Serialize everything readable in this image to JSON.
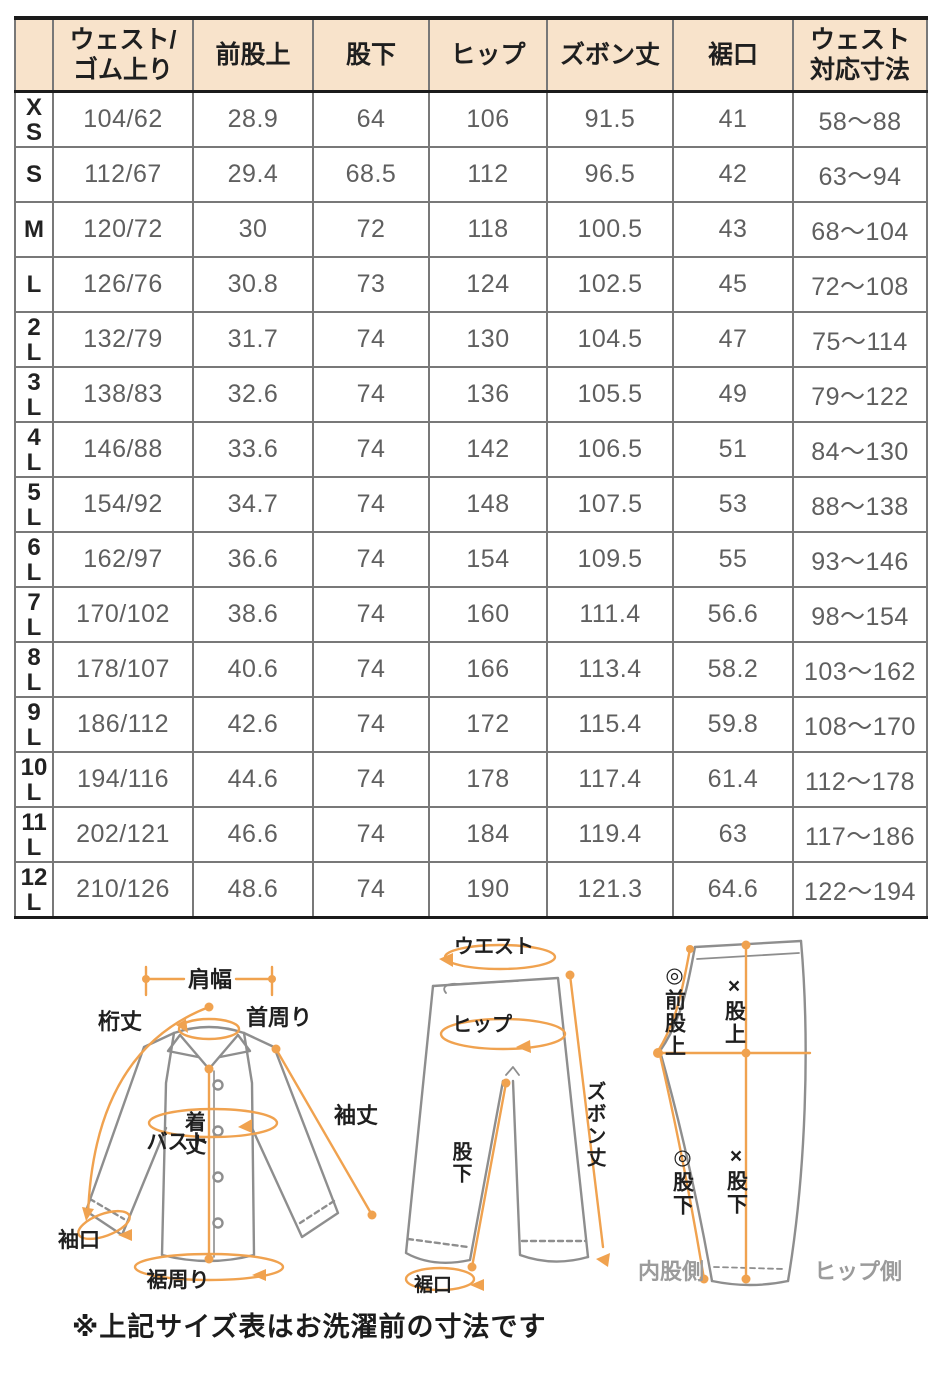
{
  "table": {
    "columns": [
      {
        "lines": []
      },
      {
        "lines": [
          "ウェスト/",
          "ゴム上り"
        ]
      },
      {
        "lines": [
          "前股上"
        ]
      },
      {
        "lines": [
          "股下"
        ]
      },
      {
        "lines": [
          "ヒップ"
        ]
      },
      {
        "lines": [
          "ズボン丈"
        ]
      },
      {
        "lines": [
          "裾口"
        ]
      },
      {
        "lines": [
          "ウェスト",
          "対応寸法"
        ]
      }
    ],
    "rows": [
      {
        "size_lines": [
          "X",
          "S"
        ],
        "cells": [
          "104/62",
          "28.9",
          "64",
          "106",
          "91.5",
          "41",
          "58〜88"
        ]
      },
      {
        "size_lines": [
          "S"
        ],
        "cells": [
          "112/67",
          "29.4",
          "68.5",
          "112",
          "96.5",
          "42",
          "63〜94"
        ]
      },
      {
        "size_lines": [
          "M"
        ],
        "cells": [
          "120/72",
          "30",
          "72",
          "118",
          "100.5",
          "43",
          "68〜104"
        ]
      },
      {
        "size_lines": [
          "L"
        ],
        "cells": [
          "126/76",
          "30.8",
          "73",
          "124",
          "102.5",
          "45",
          "72〜108"
        ]
      },
      {
        "size_lines": [
          "2",
          "L"
        ],
        "cells": [
          "132/79",
          "31.7",
          "74",
          "130",
          "104.5",
          "47",
          "75〜114"
        ]
      },
      {
        "size_lines": [
          "3",
          "L"
        ],
        "cells": [
          "138/83",
          "32.6",
          "74",
          "136",
          "105.5",
          "49",
          "79〜122"
        ]
      },
      {
        "size_lines": [
          "4",
          "L"
        ],
        "cells": [
          "146/88",
          "33.6",
          "74",
          "142",
          "106.5",
          "51",
          "84〜130"
        ]
      },
      {
        "size_lines": [
          "5",
          "L"
        ],
        "cells": [
          "154/92",
          "34.7",
          "74",
          "148",
          "107.5",
          "53",
          "88〜138"
        ]
      },
      {
        "size_lines": [
          "6",
          "L"
        ],
        "cells": [
          "162/97",
          "36.6",
          "74",
          "154",
          "109.5",
          "55",
          "93〜146"
        ]
      },
      {
        "size_lines": [
          "7",
          "L"
        ],
        "cells": [
          "170/102",
          "38.6",
          "74",
          "160",
          "111.4",
          "56.6",
          "98〜154"
        ]
      },
      {
        "size_lines": [
          "8",
          "L"
        ],
        "cells": [
          "178/107",
          "40.6",
          "74",
          "166",
          "113.4",
          "58.2",
          "103〜162"
        ]
      },
      {
        "size_lines": [
          "9",
          "L"
        ],
        "cells": [
          "186/112",
          "42.6",
          "74",
          "172",
          "115.4",
          "59.8",
          "108〜170"
        ]
      },
      {
        "size_lines": [
          "10",
          "L"
        ],
        "cells": [
          "194/116",
          "44.6",
          "74",
          "178",
          "117.4",
          "61.4",
          "112〜178"
        ]
      },
      {
        "size_lines": [
          "11",
          "L"
        ],
        "cells": [
          "202/121",
          "46.6",
          "74",
          "184",
          "119.4",
          "63",
          "117〜186"
        ]
      },
      {
        "size_lines": [
          "12",
          "L"
        ],
        "cells": [
          "210/126",
          "48.6",
          "74",
          "190",
          "121.3",
          "64.6",
          "122〜194"
        ]
      }
    ]
  },
  "diagrams": {
    "shirt": {
      "labels": {
        "shoulder_width": "肩幅",
        "neck_girth": "首周り",
        "sleeve_from_back": "桁丈",
        "bust": "バスト",
        "sleeve_length": "袖丈",
        "body_length": "着丈",
        "cuff_opening": "袖口",
        "hem_girth": "裾周り"
      }
    },
    "pants_front": {
      "labels": {
        "waist": "ウエスト",
        "hip": "ヒップ",
        "pants_length": "ズボン丈",
        "inseam": "股下",
        "hem_opening": "裾口"
      }
    },
    "pants_side": {
      "labels": {
        "front_rise": "◎前股上",
        "rise": "×股上",
        "inseam_inner": "◎股下",
        "inseam_outer": "×股下",
        "inner_thigh_side": "内股側",
        "hip_side": "ヒップ側"
      }
    }
  },
  "note": "※上記サイズ表はお洗濯前の寸法です",
  "colors": {
    "header_bg": "#f8e3cb",
    "accent_orange": "#f0a24f",
    "outline_gray": "#8e8e8e",
    "cell_text_gray": "#5f5f5f",
    "dark_text": "#1f1f1f",
    "side_label_gray": "#9b9b9b"
  }
}
